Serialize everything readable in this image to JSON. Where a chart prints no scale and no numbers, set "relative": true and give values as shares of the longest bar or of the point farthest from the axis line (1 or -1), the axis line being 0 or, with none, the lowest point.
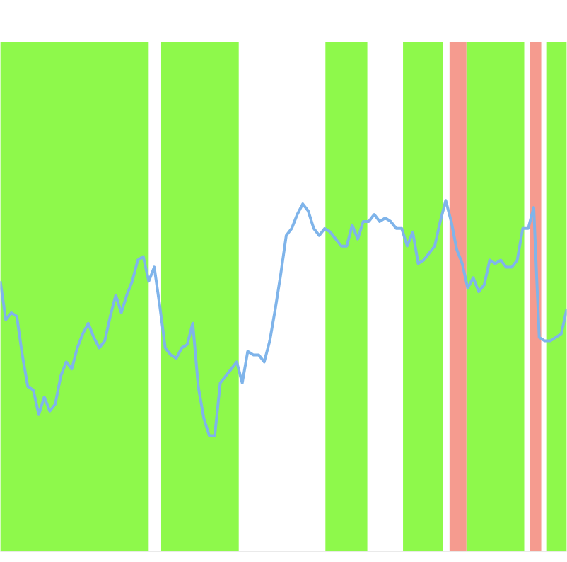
{
  "chart_data": {
    "type": "line",
    "relative": true,
    "categories": [
      null,
      null,
      null,
      null,
      null,
      null,
      null,
      null,
      null,
      null,
      null,
      null,
      null,
      null,
      null,
      null,
      null,
      null,
      null,
      null,
      null,
      null,
      null,
      null,
      null,
      null,
      null,
      null,
      null,
      null,
      null,
      null,
      null,
      null,
      null,
      null,
      null,
      null,
      null,
      null,
      null,
      null,
      null,
      null,
      null,
      null,
      null,
      null,
      null,
      null,
      null,
      null,
      null,
      null,
      null,
      null,
      null,
      null,
      null,
      null,
      null,
      null,
      null,
      null,
      null,
      null,
      null,
      null,
      null,
      null,
      null,
      null,
      null,
      null,
      null,
      null,
      null,
      null,
      null,
      null,
      null,
      null,
      null,
      null,
      null,
      null,
      null,
      null,
      null,
      null,
      null,
      null,
      null,
      null,
      null,
      null,
      null,
      null,
      null,
      null,
      null,
      null,
      null,
      null
    ],
    "series": [
      {
        "color": "#7fb4ea",
        "values": [
          0.77,
          0.66,
          0.68,
          0.67,
          0.56,
          0.47,
          0.46,
          0.39,
          0.44,
          0.4,
          0.42,
          0.5,
          0.54,
          0.52,
          0.58,
          0.62,
          0.65,
          0.61,
          0.58,
          0.6,
          0.67,
          0.73,
          0.68,
          0.73,
          0.77,
          0.83,
          0.84,
          0.77,
          0.81,
          0.7,
          0.58,
          0.56,
          0.55,
          0.58,
          0.59,
          0.65,
          0.47,
          0.38,
          0.33,
          0.33,
          0.48,
          0.5,
          0.52,
          0.54,
          0.48,
          0.57,
          0.56,
          0.56,
          0.54,
          0.6,
          0.69,
          0.79,
          0.9,
          0.92,
          0.96,
          0.99,
          0.97,
          0.92,
          0.9,
          0.92,
          0.91,
          0.89,
          0.87,
          0.87,
          0.93,
          0.89,
          0.94,
          0.94,
          0.96,
          0.94,
          0.95,
          0.94,
          0.92,
          0.92,
          0.87,
          0.91,
          0.82,
          0.83,
          0.85,
          0.87,
          0.94,
          1,
          0.94,
          0.86,
          0.82,
          0.75,
          0.78,
          0.74,
          0.76,
          0.83,
          0.82,
          0.83,
          0.81,
          0.81,
          0.83,
          0.92,
          0.92,
          0.98,
          0.61,
          0.6,
          0.6,
          0.61,
          0.62,
          0.69
        ]
      }
    ]
  }
}
